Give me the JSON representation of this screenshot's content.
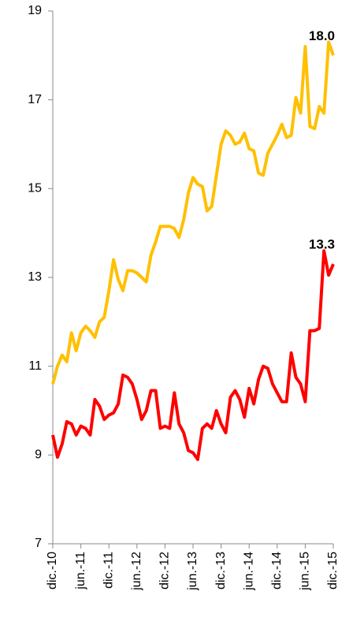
{
  "chart_data": {
    "type": "line",
    "categories": [
      "dic.-10",
      null,
      null,
      null,
      null,
      null,
      "jun.-11",
      null,
      null,
      null,
      null,
      null,
      "dic.-11",
      null,
      null,
      null,
      null,
      null,
      "jun.-12",
      null,
      null,
      null,
      null,
      null,
      "dic.-12",
      null,
      null,
      null,
      null,
      null,
      "jun.-13",
      null,
      null,
      null,
      null,
      null,
      "dic.-13",
      null,
      null,
      null,
      null,
      null,
      "jun.-14",
      null,
      null,
      null,
      null,
      null,
      "dic.-14",
      null,
      null,
      null,
      null,
      null,
      "jun.-15",
      null,
      null,
      null,
      null,
      null,
      "dic.-15"
    ],
    "series": [
      {
        "color": "#FFC000",
        "values": [
          10.6,
          11.0,
          11.25,
          11.1,
          11.75,
          11.35,
          11.75,
          11.9,
          11.8,
          11.65,
          12.0,
          12.1,
          12.7,
          13.4,
          12.95,
          12.7,
          13.15,
          13.15,
          13.1,
          13.0,
          12.9,
          13.5,
          13.8,
          14.15,
          14.15,
          14.15,
          14.1,
          13.9,
          14.3,
          14.9,
          15.25,
          15.1,
          15.05,
          14.5,
          14.6,
          15.3,
          16.0,
          16.3,
          16.2,
          16.0,
          16.05,
          16.25,
          15.9,
          15.85,
          15.35,
          15.3,
          15.8,
          16.0,
          16.2,
          16.45,
          16.15,
          16.2,
          17.05,
          16.7,
          18.2,
          16.4,
          16.35,
          16.85,
          16.7,
          18.3,
          18.0
        ],
        "value_labels": [
          null,
          null,
          null,
          null,
          null,
          null,
          null,
          null,
          null,
          null,
          null,
          null,
          null,
          null,
          null,
          null,
          null,
          null,
          null,
          null,
          null,
          null,
          null,
          null,
          null,
          null,
          null,
          null,
          null,
          null,
          null,
          null,
          null,
          null,
          null,
          null,
          null,
          null,
          null,
          null,
          null,
          null,
          null,
          null,
          null,
          null,
          null,
          null,
          null,
          null,
          null,
          null,
          null,
          null,
          null,
          null,
          null,
          null,
          null,
          null,
          "18.0"
        ]
      },
      {
        "color": "#FF0000",
        "values": [
          9.45,
          8.95,
          9.25,
          9.75,
          9.7,
          9.45,
          9.65,
          9.6,
          9.45,
          10.25,
          10.1,
          9.8,
          9.9,
          9.95,
          10.15,
          10.8,
          10.75,
          10.6,
          10.25,
          9.8,
          10.0,
          10.45,
          10.45,
          9.6,
          9.65,
          9.6,
          10.4,
          9.7,
          9.5,
          9.1,
          9.05,
          8.9,
          9.6,
          9.7,
          9.6,
          10.0,
          9.7,
          9.5,
          10.3,
          10.45,
          10.25,
          9.85,
          10.5,
          10.15,
          10.7,
          11.0,
          10.95,
          10.6,
          10.4,
          10.2,
          10.2,
          11.3,
          10.75,
          10.6,
          10.2,
          11.8,
          11.8,
          11.85,
          13.6,
          13.05,
          13.3
        ],
        "value_labels": [
          null,
          null,
          null,
          null,
          null,
          null,
          null,
          null,
          null,
          null,
          null,
          null,
          null,
          null,
          null,
          null,
          null,
          null,
          null,
          null,
          null,
          null,
          null,
          null,
          null,
          null,
          null,
          null,
          null,
          null,
          null,
          null,
          null,
          null,
          null,
          null,
          null,
          null,
          null,
          null,
          null,
          null,
          null,
          null,
          null,
          null,
          null,
          null,
          null,
          null,
          null,
          null,
          null,
          null,
          null,
          null,
          null,
          null,
          null,
          null,
          "13.3"
        ]
      }
    ],
    "ylim": [
      7,
      19
    ],
    "yticks": [
      7,
      9,
      11,
      13,
      15,
      17,
      19
    ],
    "grid": false
  }
}
